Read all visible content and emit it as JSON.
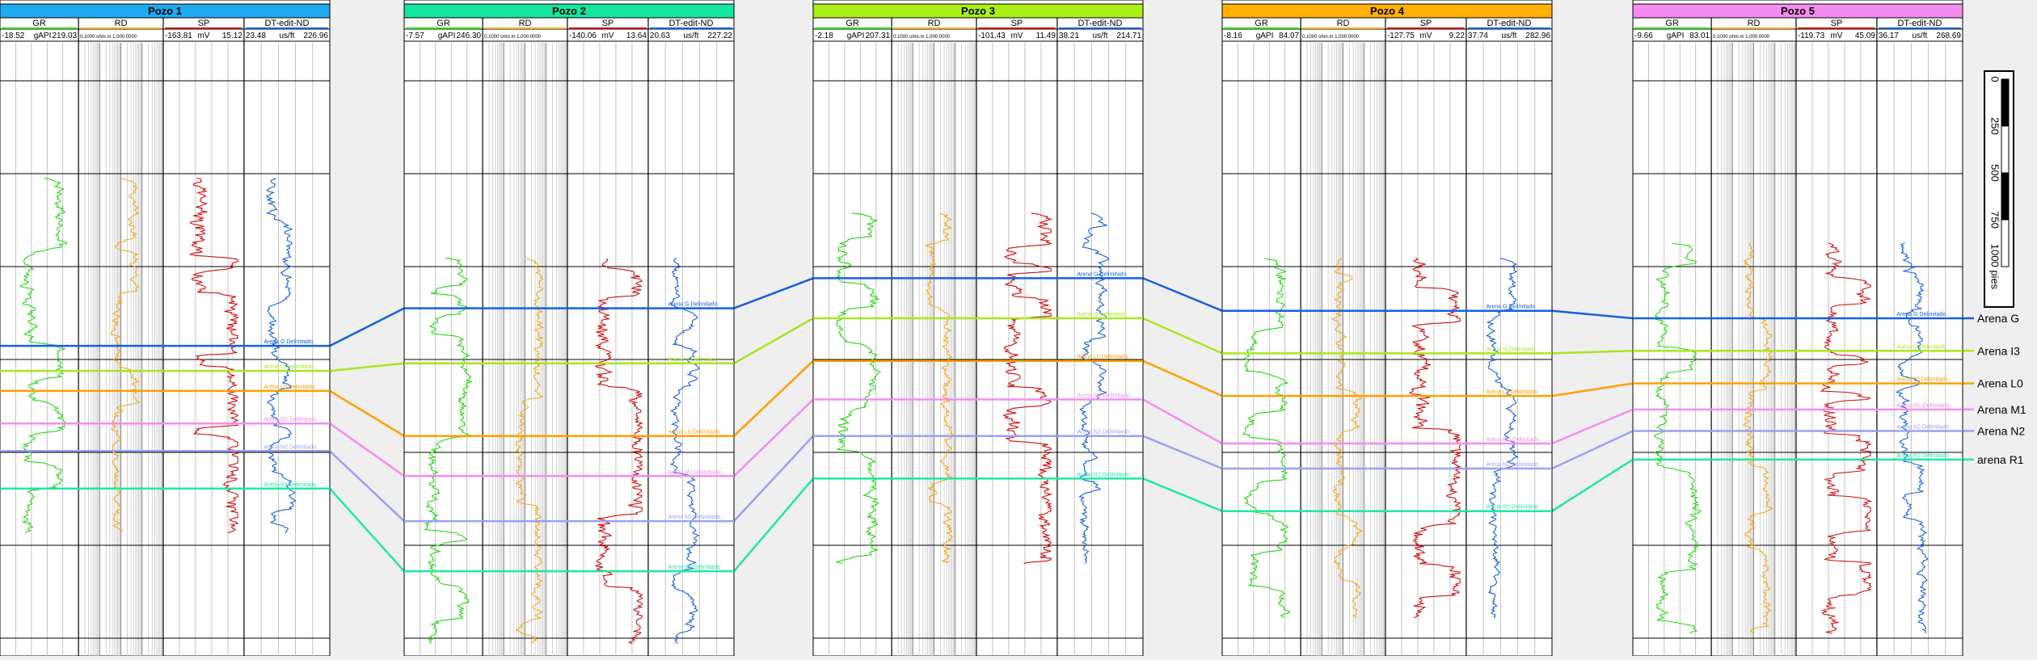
{
  "chart_data": {
    "type": "line",
    "title": "",
    "depth_scale": {
      "ticks": [
        "0",
        "250",
        "500",
        "750",
        "1000 pies"
      ]
    },
    "track_names": [
      "GR",
      "RD",
      "SP",
      "DT-edit-ND"
    ],
    "rd_scale_text": "0.1000 ohm.m 1,000.0000",
    "horizons": [
      {
        "name": "Arena G",
        "well_label": "Arena G Delimitado",
        "color": "#1560e0"
      },
      {
        "name": "Arena I3",
        "well_label": "Arena I3 Delimitado",
        "color": "#a8e61e"
      },
      {
        "name": "Arena L0",
        "well_label": "Arena L0 Delimitado",
        "color": "#ffa000"
      },
      {
        "name": "Arena M1",
        "well_label": "Arena M1 Delimitado",
        "color": "#f58cf0"
      },
      {
        "name": "Arena N2",
        "well_label": "Arena N2 Delimitado",
        "color": "#9ba0f5"
      },
      {
        "name": "arena R1",
        "well_label": "Arena R1 Delimitado",
        "color": "#20e8a0"
      }
    ],
    "wells": [
      {
        "name": "Pozo 1",
        "header_color": "#1eaaf0",
        "scales": {
          "GR": [
            "-18.52",
            "gAPI",
            "219.03"
          ],
          "SP": [
            "-163.81",
            "mV",
            "15.12"
          ],
          "DT": [
            "23.48",
            "us/ft",
            "226.96"
          ]
        },
        "log_depth_range": [
          0.27,
          0.98
        ],
        "horizon_depths": [
          0.605,
          0.655,
          0.695,
          0.76,
          0.815,
          0.89
        ]
      },
      {
        "name": "Pozo 2",
        "header_color": "#14e6a0",
        "scales": {
          "GR": [
            "-7.57",
            "gAPI",
            "246.30"
          ],
          "SP": [
            "-140.06",
            "mV",
            "13.64"
          ],
          "DT": [
            "20.63",
            "us/ft",
            "227.22"
          ]
        },
        "log_depth_range": [
          0.43,
          1.2
        ],
        "horizon_depths": [
          0.53,
          0.64,
          0.785,
          0.865,
          0.955,
          1.055
        ]
      },
      {
        "name": "Pozo 3",
        "header_color": "#aaf014",
        "scales": {
          "GR": [
            "-2.18",
            "gAPI",
            "207.31"
          ],
          "SP": [
            "-101.43",
            "mV",
            "11.49"
          ],
          "DT": [
            "38.21",
            "us/ft",
            "214.71"
          ]
        },
        "log_depth_range": [
          0.34,
          1.04
        ],
        "horizon_depths": [
          0.47,
          0.55,
          0.635,
          0.712,
          0.785,
          0.87
        ]
      },
      {
        "name": "Pozo 4",
        "header_color": "#ffb000",
        "scales": {
          "GR": [
            "-8.16",
            "gAPI",
            "84.07"
          ],
          "SP": [
            "-127.75",
            "mV",
            "9.22"
          ],
          "DT": [
            "37.74",
            "us/ft",
            "282.96"
          ]
        },
        "log_depth_range": [
          0.43,
          1.15
        ],
        "horizon_depths": [
          0.535,
          0.62,
          0.705,
          0.8,
          0.85,
          0.935
        ]
      },
      {
        "name": "Pozo 5",
        "header_color": "#f58cf0",
        "scales": {
          "GR": [
            "-9.66",
            "gAPI",
            "83.01"
          ],
          "SP": [
            "-119.73",
            "mV",
            "45.09"
          ],
          "DT": [
            "36.17",
            "us/ft",
            "268.69"
          ]
        },
        "log_depth_range": [
          0.4,
          1.18
        ],
        "horizon_depths": [
          0.55,
          0.615,
          0.68,
          0.732,
          0.775,
          0.832
        ]
      }
    ]
  }
}
